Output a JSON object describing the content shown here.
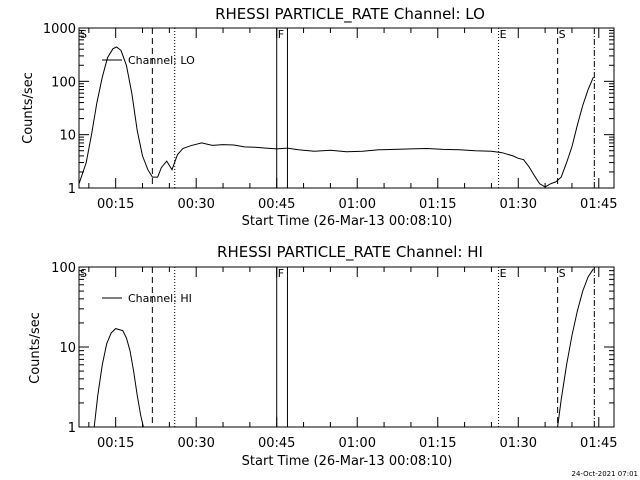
{
  "footer": {
    "date": "24-Oct-2021 07:01"
  },
  "chart_data": [
    {
      "type": "line",
      "title": "RHESSI PARTICLE_RATE Channel: LO",
      "xlabel": "Start Time (26-Mar-13 00:08:10)",
      "ylabel": "Counts/sec",
      "yscale": "log",
      "xlim": [
        "00:08:10",
        "01:47:50"
      ],
      "ylim": [
        1,
        1000
      ],
      "x_ticks": [
        "00:15",
        "00:30",
        "00:45",
        "01:00",
        "01:15",
        "01:30",
        "01:45"
      ],
      "y_ticks": [
        "1",
        "10",
        "100",
        "1000"
      ],
      "legend": "top-left",
      "series": [
        {
          "name": "Channel: LO",
          "x": [
            "00:08:10",
            "00:09:30",
            "00:10:30",
            "00:11:30",
            "00:12:30",
            "00:13:30",
            "00:14:30",
            "00:15:10",
            "00:16:00",
            "00:17:00",
            "00:18:00",
            "00:19:00",
            "00:20:00",
            "00:21:00",
            "00:21:50",
            "00:22:50",
            "00:23:30",
            "00:24:30",
            "00:25:30",
            "00:26:30",
            "00:27:30",
            "00:29:00",
            "00:31:00",
            "00:33:00",
            "00:35:00",
            "00:37:00",
            "00:39:00",
            "00:41:00",
            "00:43:00",
            "00:45:00",
            "00:47:00",
            "00:49:00",
            "00:52:00",
            "00:55:00",
            "00:58:00",
            "01:01:00",
            "01:04:00",
            "01:07:00",
            "01:10:00",
            "01:13:00",
            "01:16:00",
            "01:19:00",
            "01:22:00",
            "01:25:00",
            "01:27:00",
            "01:29:00",
            "01:30:00",
            "01:31:00",
            "01:32:00",
            "01:33:00",
            "01:34:00",
            "01:35:00",
            "01:36:00",
            "01:37:00",
            "01:38:00",
            "01:39:00",
            "01:40:00",
            "01:41:00",
            "01:42:00",
            "01:43:00",
            "01:44:00"
          ],
          "values": [
            1.2,
            3,
            10,
            40,
            120,
            280,
            410,
            440,
            380,
            200,
            60,
            12,
            4,
            2.2,
            1.6,
            1.6,
            2.4,
            3.2,
            2.2,
            4.2,
            5.5,
            6.2,
            7,
            6.3,
            6.5,
            6.4,
            5.9,
            5.8,
            5.6,
            5.4,
            5.6,
            5.2,
            4.9,
            5.1,
            4.8,
            4.9,
            5.2,
            5.3,
            5.4,
            5.5,
            5.3,
            5.2,
            5.0,
            4.9,
            4.6,
            4.0,
            3.6,
            3.4,
            2.5,
            1.7,
            1.2,
            1.05,
            1.2,
            1.3,
            1.6,
            3.0,
            6,
            15,
            35,
            70,
            120
          ]
        }
      ]
    },
    {
      "type": "line",
      "title": "RHESSI PARTICLE_RATE Channel: HI",
      "xlabel": "Start Time (26-Mar-13 00:08:10)",
      "ylabel": "Counts/sec",
      "yscale": "log",
      "xlim": [
        "00:08:10",
        "01:47:50"
      ],
      "ylim": [
        1,
        100
      ],
      "x_ticks": [
        "00:15",
        "00:30",
        "00:45",
        "01:00",
        "01:15",
        "01:30",
        "01:45"
      ],
      "y_ticks": [
        "1",
        "10",
        "100"
      ],
      "legend": "top-left",
      "series": [
        {
          "name": "Channel: HI",
          "x": [
            "00:11:00",
            "00:11:40",
            "00:12:30",
            "00:13:20",
            "00:14:10",
            "00:15:00",
            "00:15:40",
            "00:16:20",
            "00:17:00",
            "00:17:40",
            "00:18:20",
            "00:19:00",
            "00:19:40",
            "00:20:10"
          ],
          "values": [
            1,
            2.5,
            6,
            11,
            15,
            17,
            16.5,
            16,
            13,
            9,
            5,
            2.5,
            1.4,
            1
          ],
          "segment2_x": [
            "01:37:20",
            "01:38:00",
            "01:39:00",
            "01:40:00",
            "01:41:00",
            "01:42:00",
            "01:43:00",
            "01:44:00"
          ],
          "segment2_values": [
            1,
            2.2,
            6,
            14,
            28,
            50,
            75,
            95
          ]
        }
      ]
    }
  ],
  "markers": {
    "labels": [
      "S",
      "F",
      "E",
      "S"
    ],
    "times": [
      "00:08:10",
      "00:45:00",
      "01:26:20",
      "01:37:20"
    ],
    "dashed": [
      "00:21:50",
      "01:37:20"
    ],
    "dotted": [
      "00:26:00",
      "01:26:20"
    ],
    "solid": [
      "00:45:00",
      "00:47:00"
    ],
    "dashdot": [
      "01:44:10"
    ]
  }
}
